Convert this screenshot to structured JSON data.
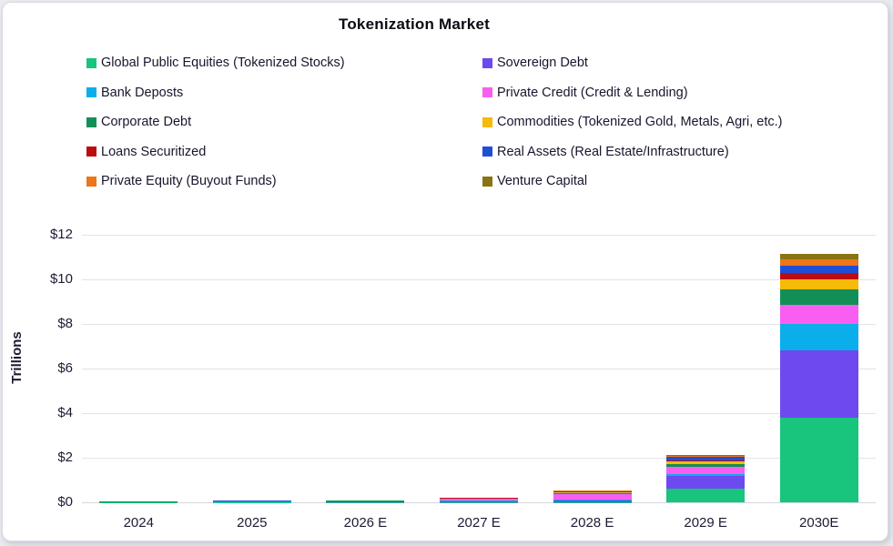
{
  "card": {
    "background": "#ffffff",
    "border_color": "#d9dae2"
  },
  "chart_data": {
    "type": "bar",
    "stacked": true,
    "title": "Tokenization Market",
    "ylabel": "Trillions",
    "ylim": [
      0,
      12
    ],
    "ytick_step": 2,
    "yticks": [
      "$0",
      "$2",
      "$4",
      "$6",
      "$8",
      "$10",
      "$12"
    ],
    "grid": true,
    "legend_position": "top",
    "categories": [
      "2024",
      "2025",
      "2026 E",
      "2027 E",
      "2028 E",
      "2029 E",
      "2030E"
    ],
    "series": [
      {
        "name": "Global Public Equities (Tokenized Stocks)",
        "color": "#19c47d",
        "values": [
          0.01,
          0.01,
          0.005,
          0.01,
          0.02,
          0.6,
          3.8
        ]
      },
      {
        "name": "Sovereign Debt",
        "color": "#6e49f0",
        "values": [
          0.005,
          0.01,
          0.03,
          0.05,
          0.08,
          0.6,
          3.0
        ]
      },
      {
        "name": "Bank Deposts",
        "color": "#09aeea",
        "values": [
          0.002,
          0.003,
          0.005,
          0.01,
          0.02,
          0.05,
          1.2
        ]
      },
      {
        "name": "Private Credit (Credit & Lending)",
        "color": "#f95ef2",
        "values": [
          0.005,
          0.01,
          0.02,
          0.08,
          0.25,
          0.35,
          0.85
        ]
      },
      {
        "name": "Corporate Debt",
        "color": "#128f57",
        "values": [
          0.002,
          0.005,
          0.005,
          0.01,
          0.02,
          0.1,
          0.7
        ]
      },
      {
        "name": "Commodities (Tokenized Gold, Metals, Agri, etc.)",
        "color": "#f5bb06",
        "values": [
          0.01,
          0.02,
          0.01,
          0.02,
          0.05,
          0.15,
          0.45
        ]
      },
      {
        "name": "Loans Securitized",
        "color": "#bd0c10",
        "values": [
          0.002,
          0.005,
          0.005,
          0.01,
          0.02,
          0.05,
          0.3
        ]
      },
      {
        "name": "Real Assets (Real Estate/Infrastructure)",
        "color": "#1e4fd6",
        "values": [
          0.002,
          0.005,
          0.01,
          0.02,
          0.04,
          0.15,
          0.3
        ]
      },
      {
        "name": "Private Equity (Buyout Funds)",
        "color": "#ee7518",
        "values": [
          0.01,
          0.01,
          0.005,
          0.01,
          0.02,
          0.05,
          0.3
        ]
      },
      {
        "name": "Venture Capital",
        "color": "#8a7313",
        "values": [
          0.002,
          0.002,
          0.005,
          0.005,
          0.01,
          0.03,
          0.25
        ]
      }
    ],
    "totals_approx": [
      0.05,
      0.08,
      0.1,
      0.2,
      0.5,
      2.1,
      11.1
    ]
  }
}
